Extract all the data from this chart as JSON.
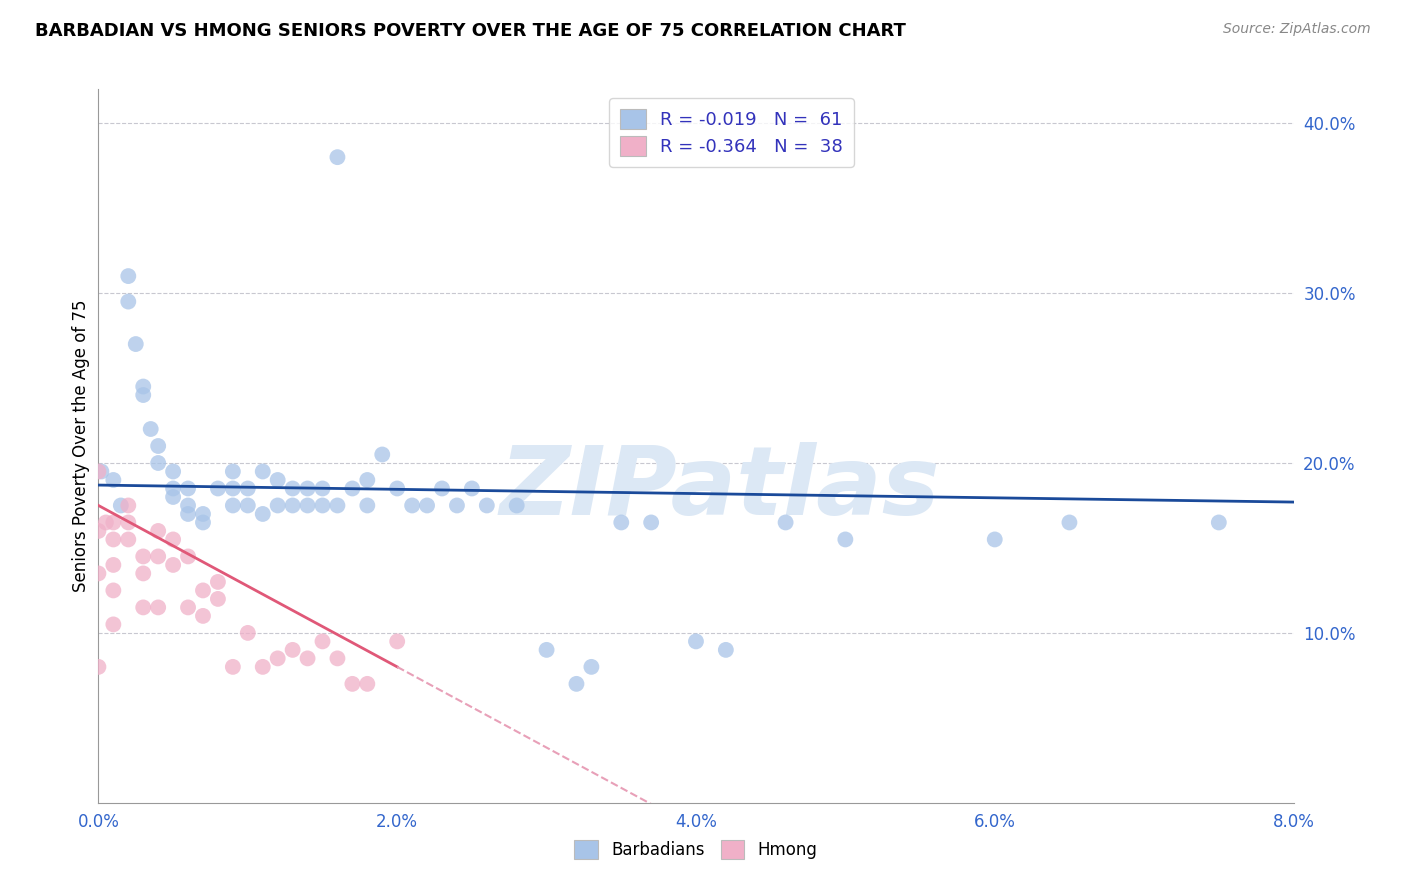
{
  "title": "BARBADIAN VS HMONG SENIORS POVERTY OVER THE AGE OF 75 CORRELATION CHART",
  "source": "Source: ZipAtlas.com",
  "ylabel": "Seniors Poverty Over the Age of 75",
  "xlim": [
    0.0,
    0.08
  ],
  "ylim": [
    0.0,
    0.42
  ],
  "xtick_labels": [
    "0.0%",
    "2.0%",
    "4.0%",
    "6.0%",
    "8.0%"
  ],
  "xtick_vals": [
    0.0,
    0.02,
    0.04,
    0.06,
    0.08
  ],
  "ytick_labels_right": [
    "10.0%",
    "20.0%",
    "30.0%",
    "40.0%"
  ],
  "ytick_vals": [
    0.1,
    0.2,
    0.3,
    0.4
  ],
  "grid_color": "#c8c8d0",
  "barbadian_color": "#a8c4e8",
  "hmong_color": "#f0b0c8",
  "barbadian_line_color": "#1a4a9a",
  "hmong_line_color": "#e05878",
  "hmong_line_dashed_color": "#e8a0b8",
  "watermark_text": "ZIPatlas",
  "watermark_color": "#dce8f5",
  "legend_text1": "R = -0.019   N =  61",
  "legend_text2": "R = -0.364   N =  38",
  "barbadian_R": -0.019,
  "hmong_R": -0.364,
  "barb_intercept": 0.185,
  "barb_slope": -0.18,
  "hmong_intercept": 0.168,
  "hmong_slope": -8.5,
  "barbadian_x": [
    0.0002,
    0.001,
    0.0015,
    0.002,
    0.002,
    0.0025,
    0.003,
    0.003,
    0.0035,
    0.004,
    0.004,
    0.005,
    0.005,
    0.005,
    0.006,
    0.006,
    0.006,
    0.007,
    0.007,
    0.008,
    0.009,
    0.009,
    0.009,
    0.01,
    0.01,
    0.011,
    0.011,
    0.012,
    0.012,
    0.013,
    0.013,
    0.014,
    0.014,
    0.015,
    0.015,
    0.016,
    0.016,
    0.017,
    0.018,
    0.018,
    0.019,
    0.02,
    0.021,
    0.022,
    0.023,
    0.024,
    0.025,
    0.026,
    0.028,
    0.03,
    0.032,
    0.033,
    0.035,
    0.037,
    0.04,
    0.042,
    0.046,
    0.05,
    0.06,
    0.065,
    0.075
  ],
  "barbadian_y": [
    0.195,
    0.19,
    0.175,
    0.295,
    0.31,
    0.27,
    0.245,
    0.24,
    0.22,
    0.21,
    0.2,
    0.195,
    0.18,
    0.185,
    0.17,
    0.175,
    0.185,
    0.165,
    0.17,
    0.185,
    0.195,
    0.175,
    0.185,
    0.175,
    0.185,
    0.17,
    0.195,
    0.175,
    0.19,
    0.175,
    0.185,
    0.175,
    0.185,
    0.175,
    0.185,
    0.38,
    0.175,
    0.185,
    0.175,
    0.19,
    0.205,
    0.185,
    0.175,
    0.175,
    0.185,
    0.175,
    0.185,
    0.175,
    0.175,
    0.09,
    0.07,
    0.08,
    0.165,
    0.165,
    0.095,
    0.09,
    0.165,
    0.155,
    0.155,
    0.165,
    0.165
  ],
  "hmong_x": [
    0.0,
    0.0,
    0.0,
    0.0,
    0.0005,
    0.001,
    0.001,
    0.001,
    0.001,
    0.001,
    0.002,
    0.002,
    0.002,
    0.003,
    0.003,
    0.003,
    0.004,
    0.004,
    0.004,
    0.005,
    0.005,
    0.006,
    0.006,
    0.007,
    0.007,
    0.008,
    0.008,
    0.009,
    0.01,
    0.011,
    0.012,
    0.013,
    0.014,
    0.015,
    0.016,
    0.017,
    0.018,
    0.02
  ],
  "hmong_y": [
    0.195,
    0.16,
    0.135,
    0.08,
    0.165,
    0.165,
    0.155,
    0.14,
    0.125,
    0.105,
    0.175,
    0.165,
    0.155,
    0.145,
    0.135,
    0.115,
    0.16,
    0.145,
    0.115,
    0.155,
    0.14,
    0.145,
    0.115,
    0.125,
    0.11,
    0.13,
    0.12,
    0.08,
    0.1,
    0.08,
    0.085,
    0.09,
    0.085,
    0.095,
    0.085,
    0.07,
    0.07,
    0.095
  ]
}
